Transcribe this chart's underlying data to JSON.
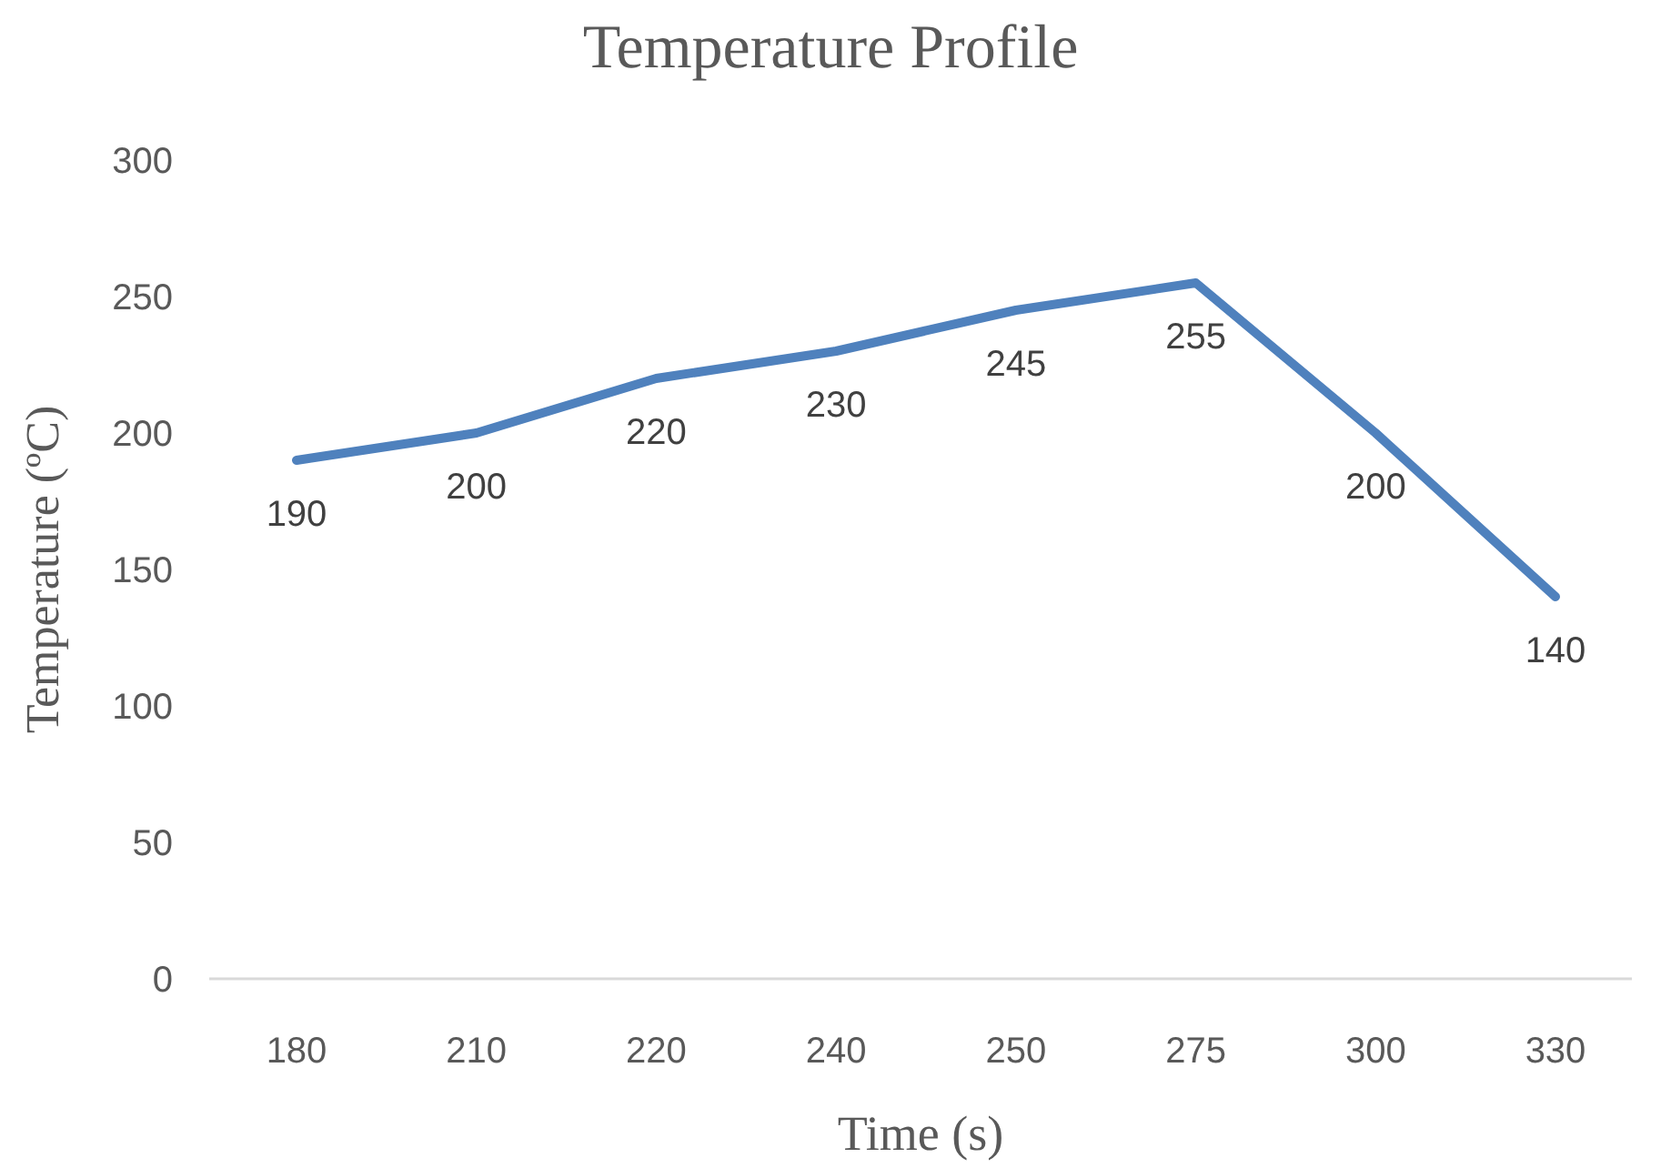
{
  "chart_data": {
    "type": "line",
    "title": "Temperature Profile",
    "xlabel": "Time (s)",
    "ylabel": "Temperature (ºC)",
    "categories": [
      "180",
      "210",
      "220",
      "240",
      "250",
      "275",
      "300",
      "330"
    ],
    "series": [
      {
        "color": "#4f81bd",
        "values": [
          190,
          200,
          220,
          230,
          245,
          255,
          200,
          140
        ]
      }
    ],
    "ylim": [
      0,
      300
    ],
    "yticks": [
      0,
      50,
      100,
      150,
      200,
      250,
      300
    ],
    "grid": false,
    "legend": false,
    "marker": "none",
    "line_style": "solid",
    "data_labels": true
  }
}
